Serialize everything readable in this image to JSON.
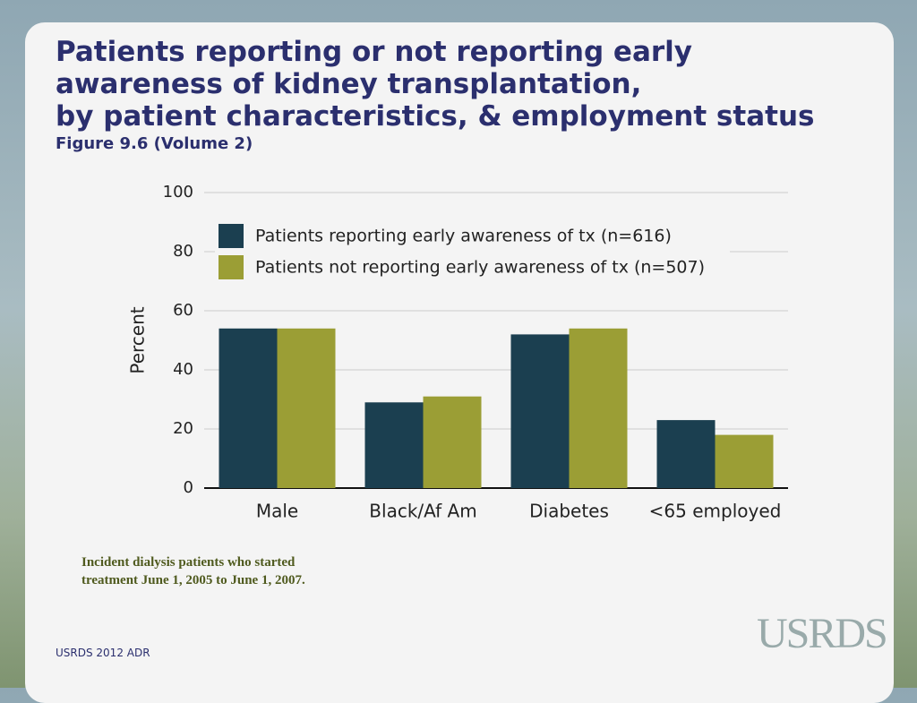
{
  "chart_data": {
    "type": "bar",
    "title": [
      "Patients reporting or not reporting early",
      "awareness  of kidney transplantation,",
      "by patient characteristics, & employment status"
    ],
    "subtitle": "Figure 9.6 (Volume 2)",
    "y_label": "Percent",
    "categories": [
      "Male",
      "Black/Af Am",
      "Diabetes",
      "<65 employed"
    ],
    "series": [
      {
        "name": "Patients reporting early awareness of tx (n=616)",
        "color": "#1b3f50",
        "values": [
          54,
          29,
          52,
          23
        ]
      },
      {
        "name": "Patients not reporting early awareness of tx (n=507)",
        "color": "#9b9e35",
        "values": [
          54,
          31,
          54,
          18
        ]
      }
    ],
    "ylim": [
      0,
      100
    ],
    "yticks": [
      0,
      20,
      40,
      60,
      80,
      100
    ],
    "grid": true,
    "legend": "upper left"
  },
  "note": [
    "Incident dialysis patients who started",
    "treatment June 1, 2005 to June 1, 2007."
  ],
  "footer": "USRDS 2012 ADR",
  "logo": "USRDS"
}
